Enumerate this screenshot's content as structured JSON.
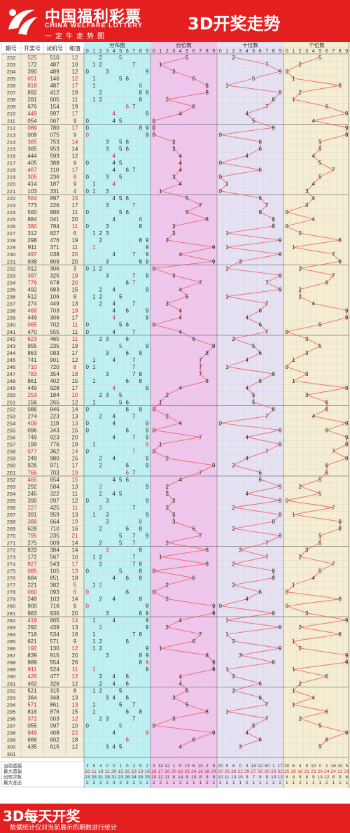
{
  "header": {
    "brand_cn": "中国福利彩票",
    "brand_en": "CHINA WELFARE LOTTERY",
    "slogan": "一定牛走势图",
    "title": "3D开奖走势"
  },
  "footer": {
    "title": "3D每天开奖",
    "note": "数据统计仅对当前展示的期数进行统计"
  },
  "colors": {
    "brand_red": "#e41f1f",
    "section_distribution": "#bdf1f4",
    "section_hundreds": "#f1c6ee",
    "section_tens": "#e6e2f4",
    "section_ones": "#f6eed2",
    "draw_text": "#cc2222",
    "trend_line": "#ee5555"
  },
  "chart_data": {
    "type": "table",
    "title": "3D开奖走势",
    "columns": [
      "期号",
      "开奖号",
      "试机号",
      "和值"
    ],
    "sections": [
      "分布图",
      "百位数",
      "十位数",
      "个位数"
    ],
    "digits": [
      "0",
      "1",
      "2",
      "3",
      "4",
      "5",
      "6",
      "7",
      "8",
      "9"
    ],
    "issue_start": 202,
    "issue_end": 301,
    "rows": [
      [
        "202",
        "525",
        "510",
        "12"
      ],
      [
        "203",
        "172",
        "487",
        "10"
      ],
      [
        "204",
        "390",
        "489",
        "12"
      ],
      [
        "205",
        "651",
        "146",
        "12"
      ],
      [
        "206",
        "818",
        "487",
        "17"
      ],
      [
        "207",
        "892",
        "412",
        "19"
      ],
      [
        "208",
        "281",
        "605",
        "11"
      ],
      [
        "209",
        "676",
        "154",
        "19"
      ],
      [
        "210",
        "449",
        "997",
        "17"
      ],
      [
        "211",
        "054",
        "067",
        "9"
      ],
      [
        "212",
        "089",
        "780",
        "17"
      ],
      [
        "213",
        "009",
        "075",
        "9"
      ],
      [
        "214",
        "365",
        "753",
        "14"
      ],
      [
        "215",
        "365",
        "953",
        "14"
      ],
      [
        "216",
        "444",
        "593",
        "12"
      ],
      [
        "217",
        "405",
        "388",
        "9"
      ],
      [
        "218",
        "467",
        "110",
        "17"
      ],
      [
        "219",
        "305",
        "236",
        "8"
      ],
      [
        "220",
        "414",
        "187",
        "9"
      ],
      [
        "221",
        "103",
        "331",
        "4"
      ],
      [
        "222",
        "564",
        "897",
        "15"
      ],
      [
        "223",
        "773",
        "226",
        "17"
      ],
      [
        "224",
        "560",
        "986",
        "11"
      ],
      [
        "225",
        "884",
        "041",
        "20"
      ],
      [
        "226",
        "380",
        "794",
        "11"
      ],
      [
        "227",
        "312",
        "827",
        "6"
      ],
      [
        "228",
        "298",
        "476",
        "19"
      ],
      [
        "229",
        "911",
        "371",
        "11"
      ],
      [
        "230",
        "497",
        "038",
        "20"
      ],
      [
        "231",
        "938",
        "809",
        "20"
      ],
      [
        "232",
        "012",
        "306",
        "3"
      ],
      [
        "233",
        "397",
        "325",
        "19"
      ],
      [
        "234",
        "776",
        "678",
        "20"
      ],
      [
        "235",
        "492",
        "683",
        "15"
      ],
      [
        "236",
        "512",
        "106",
        "8"
      ],
      [
        "237",
        "274",
        "449",
        "13"
      ],
      [
        "238",
        "469",
        "703",
        "19"
      ],
      [
        "239",
        "449",
        "306",
        "17"
      ],
      [
        "240",
        "065",
        "702",
        "11"
      ],
      [
        "241",
        "470",
        "555",
        "11"
      ],
      [
        "242",
        "623",
        "465",
        "11"
      ],
      [
        "243",
        "955",
        "235",
        "19"
      ],
      [
        "244",
        "863",
        "083",
        "17"
      ],
      [
        "245",
        "741",
        "901",
        "12"
      ],
      [
        "246",
        "710",
        "720",
        "8"
      ],
      [
        "247",
        "783",
        "354",
        "18"
      ],
      [
        "248",
        "861",
        "402",
        "15"
      ],
      [
        "249",
        "449",
        "928",
        "17"
      ],
      [
        "250",
        "253",
        "184",
        "10"
      ],
      [
        "251",
        "156",
        "265",
        "12"
      ],
      [
        "252",
        "086",
        "846",
        "14"
      ],
      [
        "253",
        "274",
        "223",
        "13"
      ],
      [
        "254",
        "409",
        "119",
        "13"
      ],
      [
        "255",
        "096",
        "343",
        "15"
      ],
      [
        "256",
        "749",
        "923",
        "20"
      ],
      [
        "257",
        "199",
        "776",
        "19"
      ],
      [
        "258",
        "077",
        "362",
        "14"
      ],
      [
        "259",
        "249",
        "980",
        "15"
      ],
      [
        "260",
        "926",
        "971",
        "17"
      ],
      [
        "261",
        "766",
        "703",
        "19"
      ],
      [
        "262",
        "465",
        "654",
        "15"
      ],
      [
        "263",
        "292",
        "584",
        "13"
      ],
      [
        "264",
        "245",
        "322",
        "11"
      ],
      [
        "265",
        "390",
        "097",
        "12"
      ],
      [
        "266",
        "227",
        "425",
        "11"
      ],
      [
        "267",
        "391",
        "959",
        "13"
      ],
      [
        "268",
        "388",
        "664",
        "19"
      ],
      [
        "269",
        "628",
        "710",
        "16"
      ],
      [
        "270",
        "795",
        "235",
        "21"
      ],
      [
        "271",
        "275",
        "009",
        "14"
      ],
      [
        "272",
        "833",
        "384",
        "14"
      ],
      [
        "273",
        "172",
        "567",
        "10"
      ],
      [
        "274",
        "827",
        "543",
        "17"
      ],
      [
        "275",
        "085",
        "105",
        "13"
      ],
      [
        "276",
        "684",
        "851",
        "18"
      ],
      [
        "277",
        "221",
        "382",
        "5"
      ],
      [
        "278",
        "060",
        "093",
        "6"
      ],
      [
        "279",
        "248",
        "103",
        "14"
      ],
      [
        "280",
        "900",
        "716",
        "9"
      ],
      [
        "281",
        "983",
        "936",
        "20"
      ],
      [
        "282",
        "419",
        "665",
        "14"
      ],
      [
        "283",
        "292",
        "439",
        "13"
      ],
      [
        "284",
        "718",
        "534",
        "16"
      ],
      [
        "285",
        "621",
        "571",
        "9"
      ],
      [
        "286",
        "192",
        "130",
        "12"
      ],
      [
        "287",
        "839",
        "915",
        "20"
      ],
      [
        "288",
        "989",
        "554",
        "26"
      ],
      [
        "289",
        "911",
        "524",
        "11"
      ],
      [
        "290",
        "426",
        "477",
        "12"
      ],
      [
        "291",
        "462",
        "326",
        "12"
      ],
      [
        "292",
        "521",
        "315",
        "8"
      ],
      [
        "293",
        "364",
        "348",
        "13"
      ],
      [
        "294",
        "571",
        "861",
        "13"
      ],
      [
        "295",
        "816",
        "876",
        "15"
      ],
      [
        "296",
        "372",
        "003",
        "12"
      ],
      [
        "297",
        "055",
        "097",
        "10"
      ],
      [
        "298",
        "949",
        "408",
        "22"
      ],
      [
        "299",
        "666",
        "602",
        "18"
      ],
      [
        "300",
        "435",
        "615",
        "12"
      ],
      [
        "301",
        "",
        "",
        ""
      ]
    ],
    "stats": {
      "labels": [
        "当前遗漏",
        "最大遗漏",
        "出现次数",
        "最大连出"
      ],
      "distribution": [
        [
          "3",
          "5",
          "4",
          "0",
          "0",
          "1",
          "0",
          "2",
          "5",
          "2"
        ],
        [
          "16",
          "11",
          "18",
          "11",
          "20",
          "13",
          "16",
          "13",
          "13",
          "16"
        ],
        [
          "23",
          "28",
          "31",
          "28",
          "31",
          "23",
          "26",
          "24",
          "33",
          "25"
        ],
        [
          "2",
          "2",
          "3",
          "2",
          "3",
          "2",
          "3",
          "2",
          "3",
          "2"
        ]
      ],
      "hundreds": [
        [
          "3",
          "14",
          "12",
          "1",
          "0",
          "13",
          "6",
          "10",
          "2",
          "9"
        ],
        [
          "18",
          "17",
          "16",
          "20",
          "16",
          "25",
          "24",
          "16",
          "18",
          "24"
        ],
        [
          "10",
          "12",
          "11",
          "8",
          "14",
          "9",
          "10",
          "8",
          "9",
          "9"
        ],
        [
          "2",
          "2",
          "1",
          "1",
          "2",
          "1",
          "1",
          "1",
          "2",
          "1"
        ]
      ],
      "tens": [
        [
          "20",
          "5",
          "8",
          "0",
          "3",
          "14",
          "12",
          "30",
          "1",
          "17"
        ],
        [
          "20",
          "26",
          "28",
          "22",
          "29",
          "27",
          "30",
          "30",
          "23",
          "32"
        ],
        [
          "10",
          "11",
          "13",
          "10",
          "9",
          "7",
          "9",
          "9",
          "10",
          "12"
        ],
        [
          "2",
          "2",
          "1",
          "1",
          "2",
          "1",
          "1",
          "1",
          "2",
          "2"
        ]
      ],
      "ones": [
        [
          "20",
          "6",
          "4",
          "9",
          "10",
          "0",
          "1",
          "16",
          "10",
          "5"
        ],
        [
          "25",
          "26",
          "16",
          "21",
          "23",
          "20",
          "24",
          "24",
          "21",
          "31"
        ],
        [
          "8",
          "8",
          "9",
          "8",
          "9",
          "13",
          "12",
          "8",
          "9",
          "6"
        ],
        [
          "1",
          "1",
          "2",
          "1",
          "1",
          "1",
          "2",
          "1",
          "1",
          "1"
        ]
      ]
    }
  }
}
